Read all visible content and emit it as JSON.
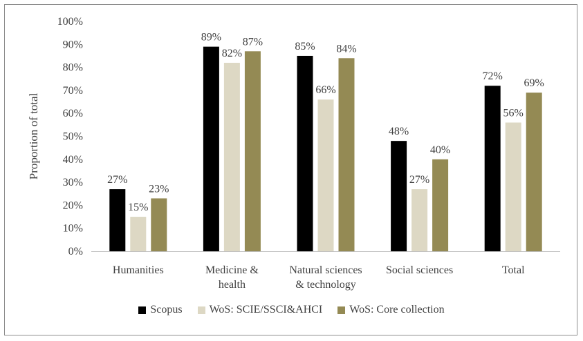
{
  "chart_data": {
    "type": "bar",
    "ylabel": "Proportion of total",
    "ylim": [
      0,
      100
    ],
    "yticks": [
      "0%",
      "10%",
      "20%",
      "30%",
      "40%",
      "50%",
      "60%",
      "70%",
      "80%",
      "90%",
      "100%"
    ],
    "categories": [
      [
        "Humanities"
      ],
      [
        "Medicine &",
        "health"
      ],
      [
        "Natural sciences",
        "& technology"
      ],
      [
        "Social sciences"
      ],
      [
        "Total"
      ]
    ],
    "series": [
      {
        "name": "Scopus",
        "color": "#000000",
        "values": [
          27,
          89,
          85,
          48,
          72
        ],
        "labels": [
          "27%",
          "89%",
          "85%",
          "48%",
          "72%"
        ]
      },
      {
        "name": "WoS: SCIE/SSCI&AHCI",
        "color": "#ddd8c4",
        "values": [
          15,
          82,
          66,
          27,
          56
        ],
        "labels": [
          "15%",
          "82%",
          "66%",
          "27%",
          "56%"
        ]
      },
      {
        "name": "WoS: Core collection",
        "color": "#948a54",
        "values": [
          23,
          87,
          84,
          40,
          69
        ],
        "labels": [
          "23%",
          "87%",
          "84%",
          "40%",
          "69%"
        ]
      }
    ],
    "grid": false,
    "legend": "bottom"
  }
}
